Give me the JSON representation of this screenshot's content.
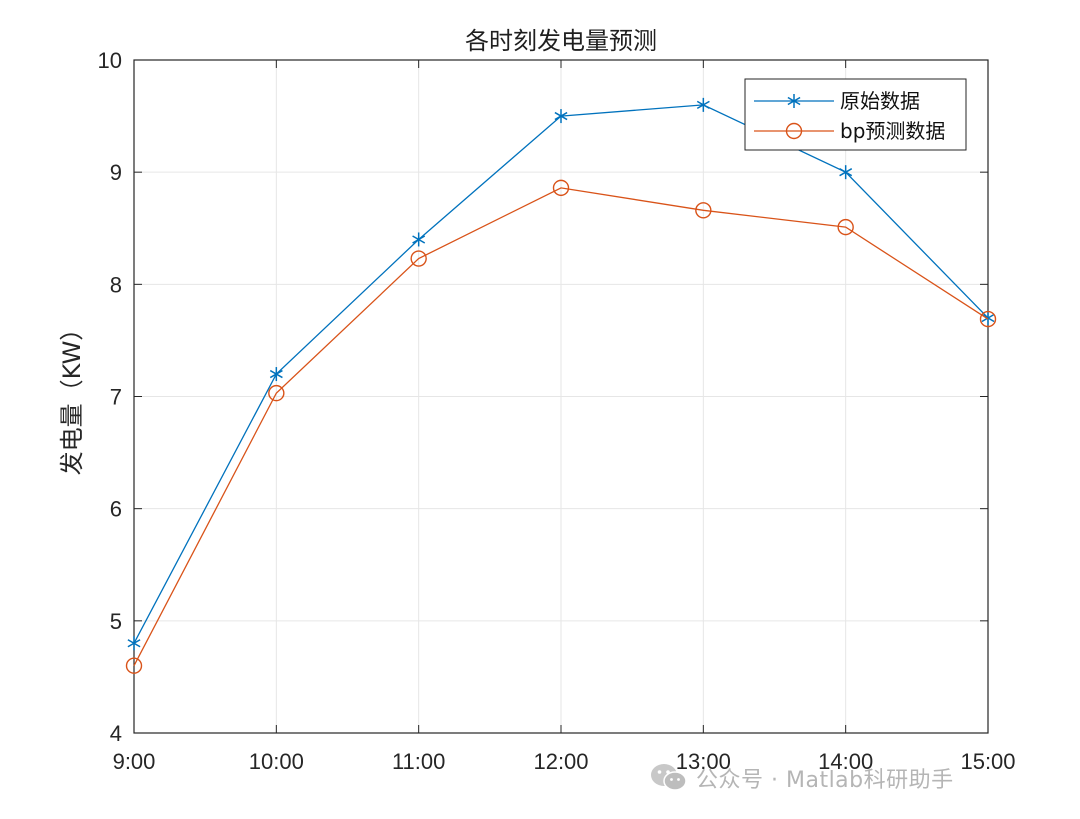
{
  "chart_data": {
    "type": "line",
    "title": "各时刻发电量预测",
    "xlabel": "",
    "ylabel": "发电量（KW）",
    "categories": [
      "9:00",
      "10:00",
      "11:00",
      "12:00",
      "13:00",
      "14:00",
      "15:00"
    ],
    "ylim": [
      4,
      10
    ],
    "yticks": [
      4,
      5,
      6,
      7,
      8,
      9,
      10
    ],
    "grid": true,
    "legend_position": "top-right",
    "series": [
      {
        "name": "原始数据",
        "marker": "asterisk",
        "color": "#0072BD",
        "values": [
          4.8,
          7.2,
          8.4,
          9.5,
          9.6,
          9.0,
          7.7
        ]
      },
      {
        "name": "bp预测数据",
        "marker": "circle",
        "color": "#D95319",
        "values": [
          4.6,
          7.03,
          8.23,
          8.86,
          8.66,
          8.51,
          7.69
        ]
      }
    ]
  },
  "watermark": {
    "icon": "wechat-icon",
    "text": "公众号 · Matlab科研助手"
  }
}
